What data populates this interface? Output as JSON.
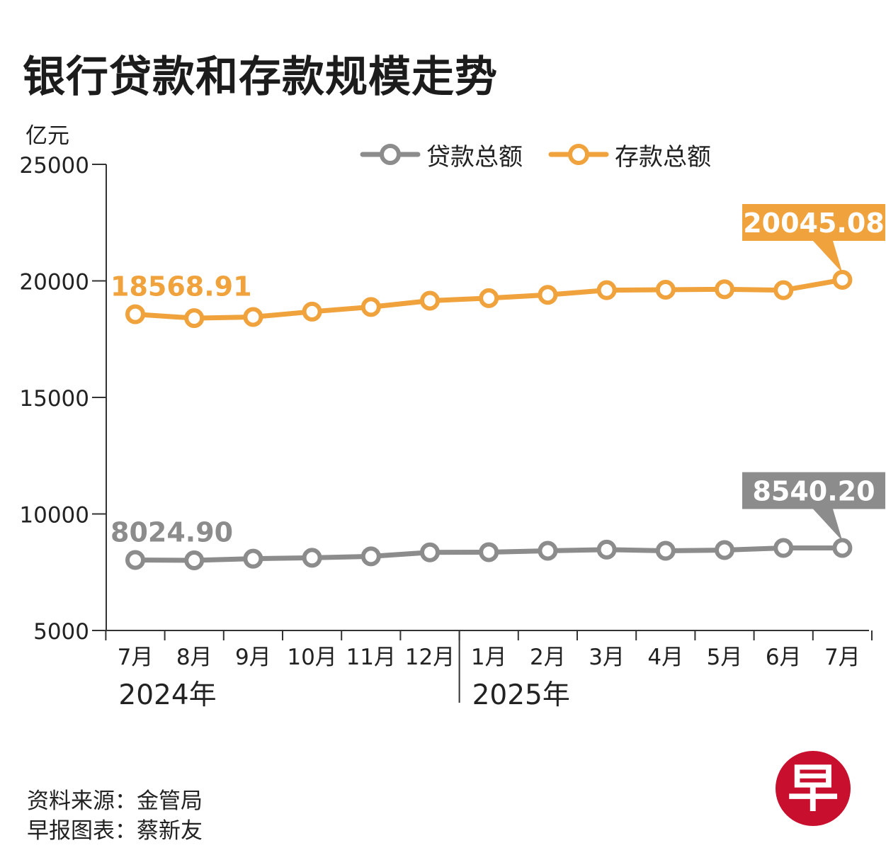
{
  "title": "银行贷款和存款规模走势",
  "source": {
    "line1": "资料来源：金管局",
    "line2": "早报图表：蔡新友"
  },
  "logo": {
    "char": "早",
    "color": "#c8102e"
  },
  "chart_data": {
    "type": "line",
    "ylabel": "亿元",
    "ylim": [
      5000,
      25000
    ],
    "yticks": [
      5000,
      10000,
      15000,
      20000,
      25000
    ],
    "grid": false,
    "legend_position": "top-right",
    "categories": [
      "7月",
      "8月",
      "9月",
      "10月",
      "11月",
      "12月",
      "1月",
      "2月",
      "3月",
      "4月",
      "5月",
      "6月",
      "7月"
    ],
    "year_groups": [
      {
        "label": "2024年",
        "count": 6
      },
      {
        "label": "2025年",
        "count": 7
      }
    ],
    "series": [
      {
        "name": "贷款总额",
        "color": "#8c8c8c",
        "values": [
          8024.9,
          8010,
          8080,
          8120,
          8180,
          8350,
          8360,
          8420,
          8470,
          8420,
          8450,
          8540,
          8540.2
        ],
        "labels": [
          {
            "index": 0,
            "text": "8024.90"
          },
          {
            "index": 12,
            "text": "8540.20",
            "boxed": true
          }
        ]
      },
      {
        "name": "存款总额",
        "color": "#f0a23c",
        "values": [
          18568.91,
          18400,
          18450,
          18680,
          18880,
          19150,
          19260,
          19400,
          19600,
          19620,
          19640,
          19600,
          20045.08
        ],
        "labels": [
          {
            "index": 0,
            "text": "18568.91"
          },
          {
            "index": 12,
            "text": "20045.08",
            "boxed": true
          }
        ]
      }
    ]
  }
}
